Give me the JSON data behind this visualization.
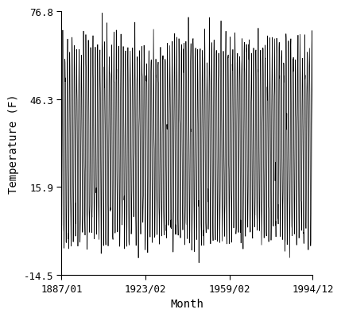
{
  "title": "",
  "xlabel": "Month",
  "ylabel": "Temperature (F)",
  "xlim_start_year": 1887,
  "xlim_start_month": 1,
  "xlim_end_year": 1994,
  "xlim_end_month": 12,
  "ylim": [
    -14.5,
    76.8
  ],
  "yticks": [
    -14.5,
    15.9,
    46.3,
    76.8
  ],
  "xtick_labels": [
    "1887/01",
    "1923/02",
    "1959/02",
    "1994/12"
  ],
  "xtick_positions_months": [
    0,
    433,
    865,
    1295
  ],
  "line_color": "#000000",
  "line_width": 0.5,
  "background_color": "#ffffff",
  "font_family": "monospace",
  "mean_temp": 31.1,
  "amplitude": 32.0,
  "noise_scale": 4.5
}
